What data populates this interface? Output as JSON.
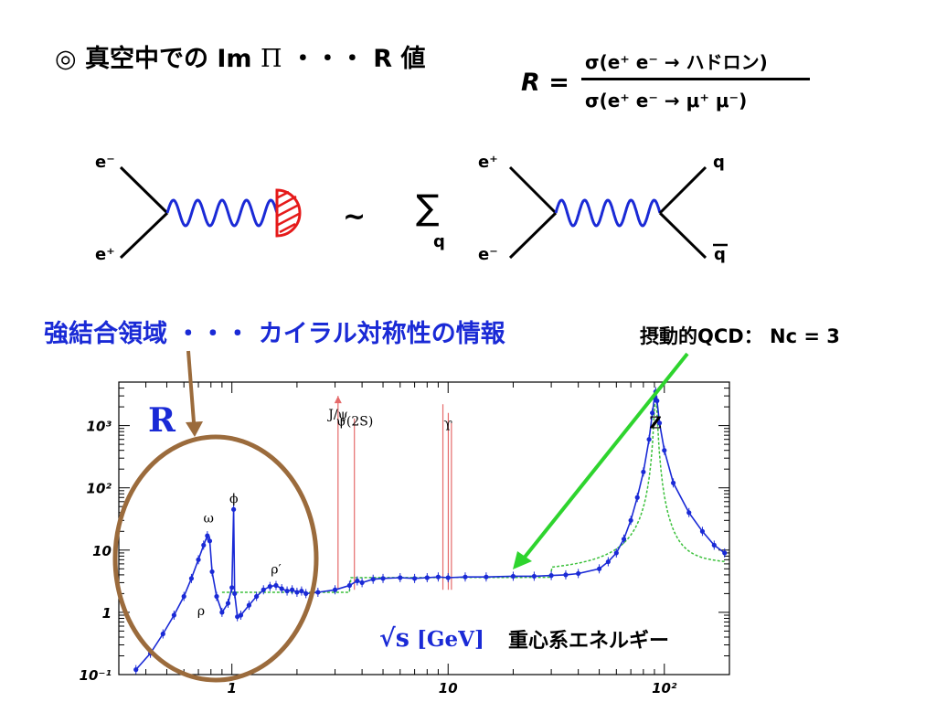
{
  "slide": {
    "title_prefix": "◎ 真空中での Im ",
    "title_pi": "Π",
    "title_suffix": " ・・・ R 値",
    "r_symbol": "R =",
    "r_numerator": "σ(e⁺ e⁻ → ハドロン)",
    "r_denominator": "σ(e⁺ e⁻ → μ⁺ μ⁻)",
    "strong_region": "強結合領域 ・・・ カイラル対称性の情報",
    "perturbative": "摂動的QCD： Nc = 3",
    "energy_label": "重心系エネルギー",
    "sqrt_s": "√s",
    "gev": "[GeV]"
  },
  "diagram": {
    "left_top": "e⁻",
    "left_bottom": "e⁺",
    "tilde": "~",
    "sum_symbol": "∑",
    "sum_index": "q",
    "right_in_top": "e⁺",
    "right_in_bottom": "e⁻",
    "right_out_top": "q",
    "right_out_bottom": "q"
  },
  "colors": {
    "photon": "#1a2ad6",
    "blob": "#e51a1a",
    "arrow_brown": "#9b6b3c",
    "arrow_green": "#2ed42e",
    "data_points": "#1a2ad6",
    "qcd_curve": "#3ac03a",
    "narrow_peaks": "#e56a6a"
  },
  "chart_data": {
    "type": "scatter",
    "title": "R",
    "xlabel": "√s [GeV]",
    "xscale": "log",
    "yscale": "log",
    "xlim": [
      0.3,
      200
    ],
    "ylim": [
      0.1,
      5000
    ],
    "xticks": [
      {
        "value": 1,
        "label": "1"
      },
      {
        "value": 10,
        "label": "10"
      },
      {
        "value": 100,
        "label": "10²"
      }
    ],
    "yticks": [
      {
        "value": 0.1,
        "label": "10⁻¹"
      },
      {
        "value": 1,
        "label": "1"
      },
      {
        "value": 10,
        "label": "10"
      },
      {
        "value": 100,
        "label": "10²"
      },
      {
        "value": 1000,
        "label": "10³"
      }
    ],
    "annotations": [
      {
        "text": "ρ",
        "x": 0.72,
        "y": 0.9
      },
      {
        "text": "ω",
        "x": 0.78,
        "y": 28
      },
      {
        "text": "ϕ",
        "x": 1.02,
        "y": 58
      },
      {
        "text": "ρ′",
        "x": 1.6,
        "y": 4.2
      },
      {
        "text": "J/ψ",
        "x": 3.1,
        "y": 1300
      },
      {
        "text": "ψ(2S)",
        "x": 3.7,
        "y": 1000
      },
      {
        "text": "ϒ",
        "x": 10.0,
        "y": 850
      },
      {
        "text": "Z",
        "x": 91,
        "y": 900
      }
    ],
    "series": [
      {
        "values_x": [
          0.36,
          0.42,
          0.48,
          0.54,
          0.6,
          0.65,
          0.7,
          0.74,
          0.77,
          0.79,
          0.81,
          0.85,
          0.9,
          0.96,
          1.0,
          1.019,
          1.03,
          1.06,
          1.1,
          1.2,
          1.3,
          1.4,
          1.5,
          1.6,
          1.7,
          1.8,
          1.9,
          2.0,
          2.1,
          2.2,
          2.5,
          3.0,
          3.5,
          3.8,
          4.0,
          4.5,
          5.0,
          6.0,
          7.0,
          8.0,
          9.0,
          10.0,
          12.0,
          15.0,
          20.0,
          25.0,
          30.0,
          35.0,
          40.0,
          50.0,
          55.0,
          60.0,
          65.0,
          70.0,
          75.0,
          80.0,
          85.0,
          88.0,
          90.0,
          91.2,
          92.5,
          95.0,
          100.0,
          110.0,
          130.0,
          150.0,
          170.0,
          190.0
        ],
        "values_y": [
          0.12,
          0.22,
          0.45,
          0.9,
          1.8,
          3.5,
          7.0,
          12.0,
          17.0,
          14.0,
          4.5,
          1.8,
          1.0,
          1.4,
          2.5,
          45.0,
          2.0,
          0.85,
          0.9,
          1.3,
          1.8,
          2.3,
          2.6,
          2.7,
          2.4,
          2.2,
          2.3,
          2.1,
          2.2,
          2.0,
          2.1,
          2.3,
          2.7,
          3.2,
          3.0,
          3.4,
          3.5,
          3.6,
          3.5,
          3.6,
          3.7,
          3.6,
          3.7,
          3.7,
          3.8,
          3.8,
          3.9,
          4.0,
          4.2,
          5.0,
          6.5,
          9.0,
          15.0,
          30.0,
          70.0,
          180.0,
          600.0,
          1600.0,
          2800.0,
          3500.0,
          2500.0,
          1100.0,
          400.0,
          120.0,
          40.0,
          20.0,
          12.0,
          9.0
        ]
      }
    ]
  }
}
